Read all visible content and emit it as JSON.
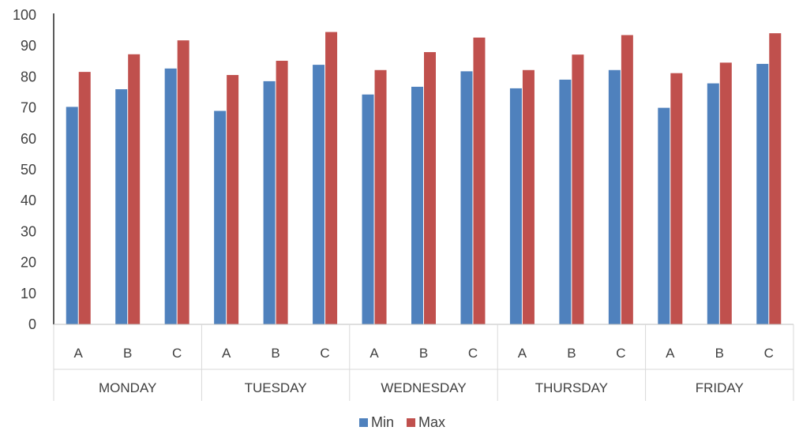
{
  "chart_data": {
    "type": "bar",
    "groups": [
      {
        "label": "MONDAY",
        "categories": [
          "A",
          "B",
          "C"
        ]
      },
      {
        "label": "TUESDAY",
        "categories": [
          "A",
          "B",
          "C"
        ]
      },
      {
        "label": "WEDNESDAY",
        "categories": [
          "A",
          "B",
          "C"
        ]
      },
      {
        "label": "THURSDAY",
        "categories": [
          "A",
          "B",
          "C"
        ]
      },
      {
        "label": "FRIDAY",
        "categories": [
          "A",
          "B",
          "C"
        ]
      }
    ],
    "series": [
      {
        "name": "Min",
        "color": "#4f81bd",
        "values": [
          70.3,
          76.0,
          82.7,
          69.0,
          78.6,
          83.9,
          74.3,
          76.8,
          81.8,
          76.3,
          79.1,
          82.2,
          70.0,
          77.9,
          84.2
        ]
      },
      {
        "name": "Max",
        "color": "#c0504d",
        "values": [
          81.6,
          87.3,
          91.8,
          80.6,
          85.2,
          94.5,
          82.2,
          88.0,
          92.7,
          82.2,
          87.2,
          93.5,
          81.2,
          84.6,
          94.1
        ]
      }
    ],
    "y_ticks": [
      "0",
      "10",
      "20",
      "30",
      "40",
      "50",
      "60",
      "70",
      "80",
      "90",
      "100"
    ],
    "ylim": [
      0,
      100
    ],
    "legend_position": "bottom",
    "grid": false
  }
}
